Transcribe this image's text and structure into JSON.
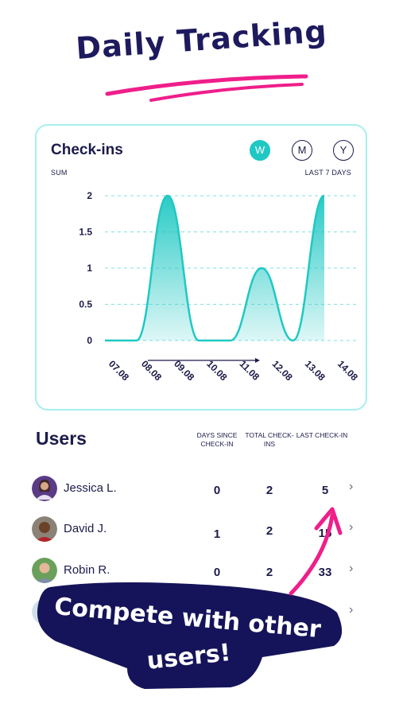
{
  "headline": "Daily Tracking",
  "colors": {
    "accent": "#1fc8c3",
    "navy": "#1e1a5e",
    "pink": "#ef1e8a",
    "text": "#1c1b4a"
  },
  "card": {
    "title": "Check-ins",
    "periods": [
      {
        "label": "W",
        "active": true
      },
      {
        "label": "M",
        "active": false
      },
      {
        "label": "Y",
        "active": false
      }
    ],
    "metric_label": "SUM",
    "range_label": "LAST 7 DAYS"
  },
  "chart_data": {
    "type": "area",
    "categories": [
      "07.08",
      "08.08",
      "09.08",
      "10.08",
      "11.08",
      "12.08",
      "13.08",
      "14.08"
    ],
    "values": [
      0,
      0,
      2,
      0,
      0,
      1,
      0,
      2
    ],
    "yticks": [
      "0",
      "0.5",
      "1",
      "1.5",
      "2"
    ],
    "ylim": [
      0,
      2
    ],
    "grid": true
  },
  "users": {
    "title": "Users",
    "columns": [
      "DAYS SINCE CHECK-IN",
      "TOTAL CHECK-INS",
      "LAST CHECK-IN"
    ],
    "rows": [
      {
        "name": "Jessica L.",
        "days_since": "0",
        "total": "2",
        "last": "5"
      },
      {
        "name": "David J.",
        "days_since": "1",
        "total": "2",
        "last": "15"
      },
      {
        "name": "Robin R.",
        "days_since": "0",
        "total": "2",
        "last": "33"
      },
      {
        "name": "",
        "days_since": "",
        "total": "",
        "last": ""
      }
    ]
  },
  "badge": {
    "line1": "Compete with other",
    "line2": "users!"
  },
  "icons": {
    "chevron": "chevron-right-icon",
    "arrow": "pink-arrow-icon"
  }
}
